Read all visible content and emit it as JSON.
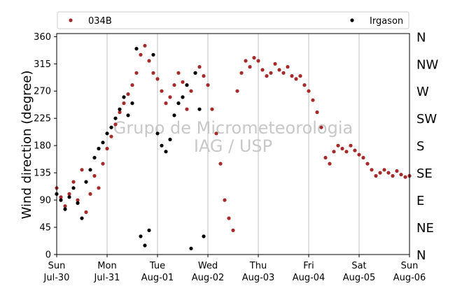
{
  "chart_data": {
    "type": "scatter",
    "ylabel": "Wind direction (degree)",
    "ylim": [
      0,
      365
    ],
    "yticks": [
      0,
      45,
      90,
      135,
      180,
      225,
      270,
      315,
      360
    ],
    "direction_labels": [
      {
        "deg": 0,
        "label": "N"
      },
      {
        "deg": 45,
        "label": "NE"
      },
      {
        "deg": 90,
        "label": "E"
      },
      {
        "deg": 135,
        "label": "SE"
      },
      {
        "deg": 180,
        "label": "S"
      },
      {
        "deg": 225,
        "label": "SW"
      },
      {
        "deg": 270,
        "label": "W"
      },
      {
        "deg": 315,
        "label": "NW"
      },
      {
        "deg": 360,
        "label": "N"
      }
    ],
    "xlim": [
      "Jul-30",
      "Aug-06"
    ],
    "xticks": [
      {
        "day": "Sun",
        "date": "Jul-30"
      },
      {
        "day": "Mon",
        "date": "Jul-31"
      },
      {
        "day": "Tue",
        "date": "Aug-01"
      },
      {
        "day": "Wed",
        "date": "Aug-02"
      },
      {
        "day": "Thu",
        "date": "Aug-03"
      },
      {
        "day": "Fri",
        "date": "Aug-04"
      },
      {
        "day": "Sat",
        "date": "Aug-05"
      },
      {
        "day": "Sun",
        "date": "Aug-06"
      }
    ],
    "grid": "x",
    "legend_placement": "top",
    "watermark": [
      "Grupo de Micrometeorologia",
      "IAG / USP"
    ],
    "series": [
      {
        "name": "034B",
        "color": "#a52a2a",
        "points": [
          [
            "Jul-30 00:00",
            110
          ],
          [
            "Jul-30 02:00",
            95
          ],
          [
            "Jul-30 04:00",
            80
          ],
          [
            "Jul-30 06:00",
            100
          ],
          [
            "Jul-30 08:00",
            120
          ],
          [
            "Jul-30 10:00",
            90
          ],
          [
            "Jul-30 12:00",
            140
          ],
          [
            "Jul-30 14:00",
            70
          ],
          [
            "Jul-30 16:00",
            100
          ],
          [
            "Jul-30 18:00",
            130
          ],
          [
            "Jul-30 20:00",
            110
          ],
          [
            "Jul-30 22:00",
            150
          ],
          [
            "Jul-31 00:00",
            175
          ],
          [
            "Jul-31 02:00",
            195
          ],
          [
            "Jul-31 04:00",
            215
          ],
          [
            "Jul-31 06:00",
            235
          ],
          [
            "Jul-31 08:00",
            250
          ],
          [
            "Jul-31 10:00",
            265
          ],
          [
            "Jul-31 12:00",
            280
          ],
          [
            "Jul-31 14:00",
            300
          ],
          [
            "Jul-31 16:00",
            330
          ],
          [
            "Jul-31 18:00",
            345
          ],
          [
            "Jul-31 20:00",
            320
          ],
          [
            "Jul-31 22:00",
            300
          ],
          [
            "Aug-01 00:00",
            290
          ],
          [
            "Aug-01 02:00",
            270
          ],
          [
            "Aug-01 04:00",
            250
          ],
          [
            "Aug-01 06:00",
            260
          ],
          [
            "Aug-01 08:00",
            280
          ],
          [
            "Aug-01 10:00",
            300
          ],
          [
            "Aug-01 12:00",
            285
          ],
          [
            "Aug-01 14:00",
            240
          ],
          [
            "Aug-01 16:00",
            270
          ],
          [
            "Aug-01 18:00",
            300
          ],
          [
            "Aug-01 20:00",
            310
          ],
          [
            "Aug-01 22:00",
            295
          ],
          [
            "Aug-02 00:00",
            280
          ],
          [
            "Aug-02 02:00",
            240
          ],
          [
            "Aug-02 04:00",
            200
          ],
          [
            "Aug-02 06:00",
            150
          ],
          [
            "Aug-02 08:00",
            90
          ],
          [
            "Aug-02 10:00",
            60
          ],
          [
            "Aug-02 12:00",
            40
          ],
          [
            "Aug-02 14:00",
            270
          ],
          [
            "Aug-02 16:00",
            300
          ],
          [
            "Aug-02 18:00",
            320
          ],
          [
            "Aug-02 20:00",
            310
          ],
          [
            "Aug-02 22:00",
            325
          ],
          [
            "Aug-03 00:00",
            320
          ],
          [
            "Aug-03 02:00",
            305
          ],
          [
            "Aug-03 04:00",
            295
          ],
          [
            "Aug-03 06:00",
            300
          ],
          [
            "Aug-03 08:00",
            315
          ],
          [
            "Aug-03 10:00",
            305
          ],
          [
            "Aug-03 12:00",
            300
          ],
          [
            "Aug-03 14:00",
            310
          ],
          [
            "Aug-03 16:00",
            295
          ],
          [
            "Aug-03 18:00",
            290
          ],
          [
            "Aug-03 20:00",
            295
          ],
          [
            "Aug-03 22:00",
            280
          ],
          [
            "Aug-04 00:00",
            270
          ],
          [
            "Aug-04 02:00",
            255
          ],
          [
            "Aug-04 04:00",
            235
          ],
          [
            "Aug-04 06:00",
            210
          ],
          [
            "Aug-04 08:00",
            160
          ],
          [
            "Aug-04 10:00",
            150
          ],
          [
            "Aug-04 12:00",
            170
          ],
          [
            "Aug-04 14:00",
            180
          ],
          [
            "Aug-04 16:00",
            175
          ],
          [
            "Aug-04 18:00",
            170
          ],
          [
            "Aug-04 20:00",
            180
          ],
          [
            "Aug-04 22:00",
            172
          ],
          [
            "Aug-05 00:00",
            165
          ],
          [
            "Aug-05 02:00",
            160
          ],
          [
            "Aug-05 04:00",
            150
          ],
          [
            "Aug-05 06:00",
            140
          ],
          [
            "Aug-05 08:00",
            130
          ],
          [
            "Aug-05 10:00",
            135
          ],
          [
            "Aug-05 12:00",
            140
          ],
          [
            "Aug-05 14:00",
            135
          ],
          [
            "Aug-05 16:00",
            130
          ],
          [
            "Aug-05 18:00",
            138
          ],
          [
            "Aug-05 20:00",
            132
          ],
          [
            "Aug-05 22:00",
            128
          ],
          [
            "Aug-06 00:00",
            130
          ]
        ]
      },
      {
        "name": "Irgason",
        "color": "#000000",
        "points": [
          [
            "Jul-30 00:00",
            100
          ],
          [
            "Jul-30 02:00",
            90
          ],
          [
            "Jul-30 04:00",
            75
          ],
          [
            "Jul-30 06:00",
            95
          ],
          [
            "Jul-30 08:00",
            110
          ],
          [
            "Jul-30 10:00",
            85
          ],
          [
            "Jul-30 12:00",
            60
          ],
          [
            "Jul-30 14:00",
            120
          ],
          [
            "Jul-30 16:00",
            140
          ],
          [
            "Jul-30 18:00",
            160
          ],
          [
            "Jul-30 20:00",
            175
          ],
          [
            "Jul-30 22:00",
            185
          ],
          [
            "Jul-31 00:00",
            200
          ],
          [
            "Jul-31 02:00",
            210
          ],
          [
            "Jul-31 04:00",
            225
          ],
          [
            "Jul-31 06:00",
            240
          ],
          [
            "Jul-31 08:00",
            260
          ],
          [
            "Jul-31 10:00",
            230
          ],
          [
            "Jul-31 12:00",
            250
          ],
          [
            "Jul-31 14:00",
            340
          ],
          [
            "Jul-31 16:00",
            30
          ],
          [
            "Jul-31 18:00",
            15
          ],
          [
            "Jul-31 20:00",
            40
          ],
          [
            "Jul-31 22:00",
            330
          ],
          [
            "Aug-01 00:00",
            200
          ],
          [
            "Aug-01 02:00",
            180
          ],
          [
            "Aug-01 04:00",
            170
          ],
          [
            "Aug-01 06:00",
            190
          ],
          [
            "Aug-01 08:00",
            230
          ],
          [
            "Aug-01 10:00",
            250
          ],
          [
            "Aug-01 12:00",
            260
          ],
          [
            "Aug-01 14:00",
            280
          ],
          [
            "Aug-01 16:00",
            10
          ],
          [
            "Aug-01 18:00",
            300
          ],
          [
            "Aug-01 20:00",
            240
          ],
          [
            "Aug-01 22:00",
            30
          ]
        ]
      }
    ]
  }
}
